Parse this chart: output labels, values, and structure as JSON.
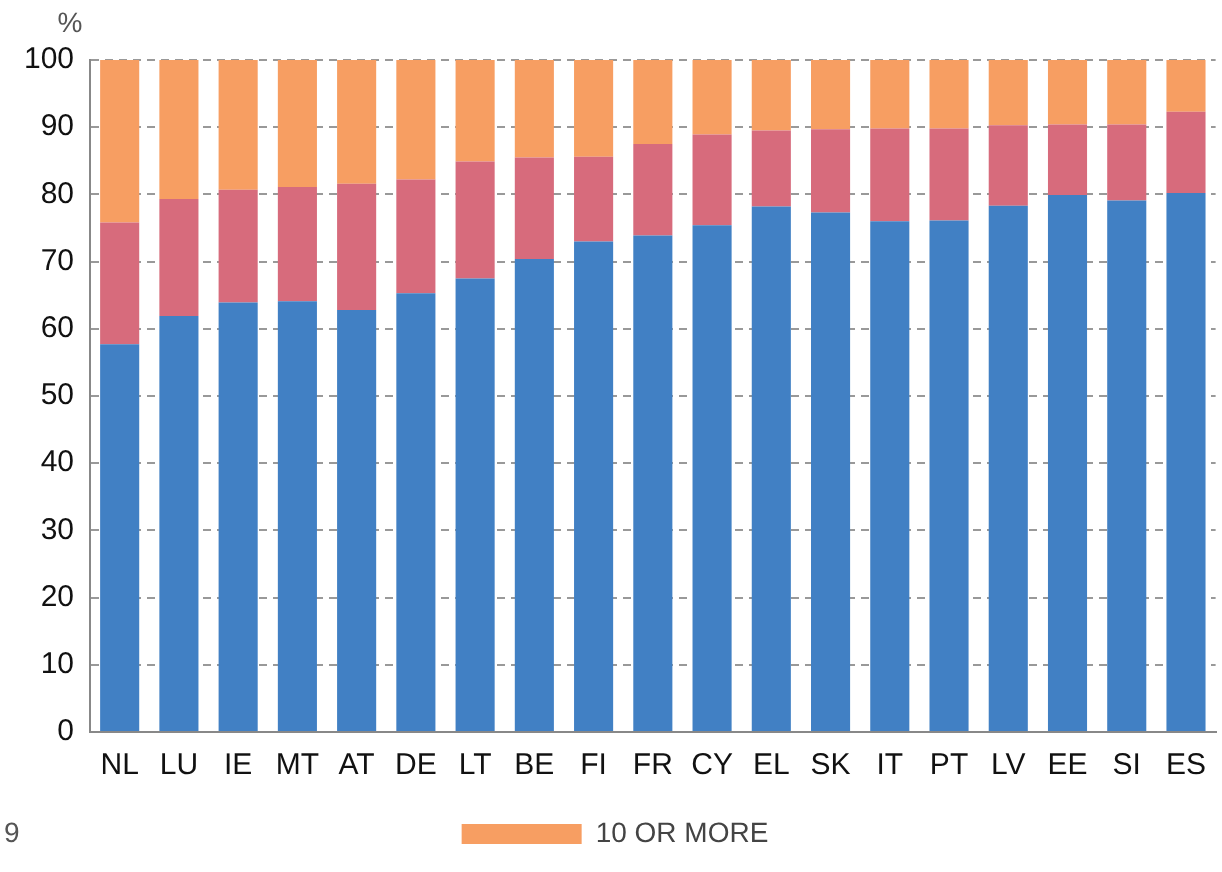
{
  "chart_data": {
    "type": "bar",
    "stacked": true,
    "ylabel": "%",
    "categories": [
      "NL",
      "LU",
      "IE",
      "MT",
      "AT",
      "DE",
      "LT",
      "BE",
      "FI",
      "FR",
      "CY",
      "EL",
      "SK",
      "IT",
      "PT",
      "LV",
      "EE",
      "SI",
      "ES"
    ],
    "series": [
      {
        "color": "#4180c4",
        "values": [
          57.7,
          61.9,
          63.9,
          64.1,
          62.8,
          65.3,
          67.5,
          70.4,
          73.0,
          73.9,
          75.4,
          78.2,
          77.3,
          76.0,
          76.1,
          78.3,
          79.9,
          79.1,
          80.2
        ]
      },
      {
        "color": "#d76b7c",
        "values": [
          18.1,
          17.4,
          16.8,
          17.0,
          18.8,
          16.9,
          17.4,
          15.1,
          12.6,
          13.6,
          13.5,
          11.3,
          12.4,
          13.8,
          13.7,
          12.0,
          10.5,
          11.3,
          12.1
        ]
      },
      {
        "name": "10 OR MORE",
        "color": "#f79e62",
        "values": [
          24.2,
          20.7,
          19.3,
          18.9,
          18.4,
          17.8,
          15.1,
          14.5,
          14.4,
          12.5,
          11.1,
          10.5,
          10.3,
          10.2,
          10.2,
          9.7,
          9.6,
          9.6,
          7.7
        ]
      }
    ],
    "ylim": [
      0,
      100
    ],
    "yticks": [
      0,
      10,
      20,
      30,
      40,
      50,
      60,
      70,
      80,
      90,
      100
    ],
    "grid": "y",
    "legend": "bottom",
    "annotations": [
      "9"
    ]
  }
}
